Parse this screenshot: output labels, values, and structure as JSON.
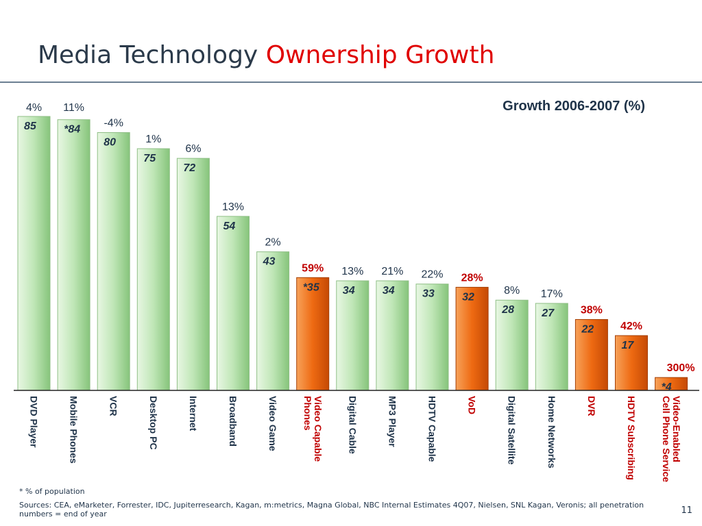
{
  "slide": {
    "title_main": "Media Technology",
    "title_accent": "Ownership Growth",
    "footnote": "* % of  population",
    "sources": "Sources:  CEA, eMarketer, Forrester, IDC, Jupiterresearch, Kagan, m:metrics, Magna Global, NBC Internal Estimates 4Q07, Nielsen, SNL Kagan, Veronis; all penetration numbers = end of year",
    "page_number": "11"
  },
  "colors": {
    "title_text": "#2b3a4a",
    "title_accent": "#e00000",
    "green_bar": "#b8e3b0",
    "orange_bar": "#ee6a12",
    "label_dark": "#1f3349",
    "label_red": "#c00000"
  },
  "chart_data": {
    "type": "bar",
    "title": "Growth 2006-2007 (%)",
    "xlabel": "",
    "ylabel": "",
    "ylim": [
      0,
      85
    ],
    "grid": false,
    "categories": [
      "DVD Player",
      "Mobile Phones",
      "VCR",
      "Desktop PC",
      "Internet",
      "Broadband",
      "Video Game",
      "Video Capable Phones",
      "Digital Cable",
      "MP3 Player",
      "HDTV Capable",
      "VoD",
      "Digital Satellite",
      "Home Networks",
      "DVR",
      "HDTV Subscribing",
      "Video-Enabled Cell Phone Service"
    ],
    "category_lines": [
      [
        "DVD Player"
      ],
      [
        "Mobile Phones"
      ],
      [
        "VCR"
      ],
      [
        "Desktop PC"
      ],
      [
        "Internet"
      ],
      [
        "Broadband"
      ],
      [
        "Video Game"
      ],
      [
        "Video Capable",
        "Phones"
      ],
      [
        "Digital Cable"
      ],
      [
        "MP3 Player"
      ],
      [
        "HDTV Capable"
      ],
      [
        "VoD"
      ],
      [
        "Digital Satellite"
      ],
      [
        "Home Networks"
      ],
      [
        "DVR"
      ],
      [
        "HDTV Subscribing"
      ],
      [
        "Video-Enabled",
        "Cell Phone Service"
      ]
    ],
    "values": [
      85,
      84,
      80,
      75,
      72,
      54,
      43,
      35,
      34,
      34,
      33,
      32,
      28,
      27,
      22,
      17,
      4
    ],
    "value_labels": [
      "85",
      "*84",
      "80",
      "75",
      "72",
      "54",
      "43",
      "*35",
      "34",
      "34",
      "33",
      "32",
      "28",
      "27",
      "22",
      "17",
      "*4"
    ],
    "growth_labels": [
      "4%",
      "11%",
      "-4%",
      "1%",
      "6%",
      "13%",
      "2%",
      "59%",
      "13%",
      "21%",
      "22%",
      "28%",
      "8%",
      "17%",
      "38%",
      "42%",
      "300%"
    ],
    "highlighted": [
      false,
      false,
      false,
      false,
      false,
      false,
      false,
      true,
      false,
      false,
      false,
      true,
      false,
      false,
      true,
      true,
      true
    ]
  }
}
